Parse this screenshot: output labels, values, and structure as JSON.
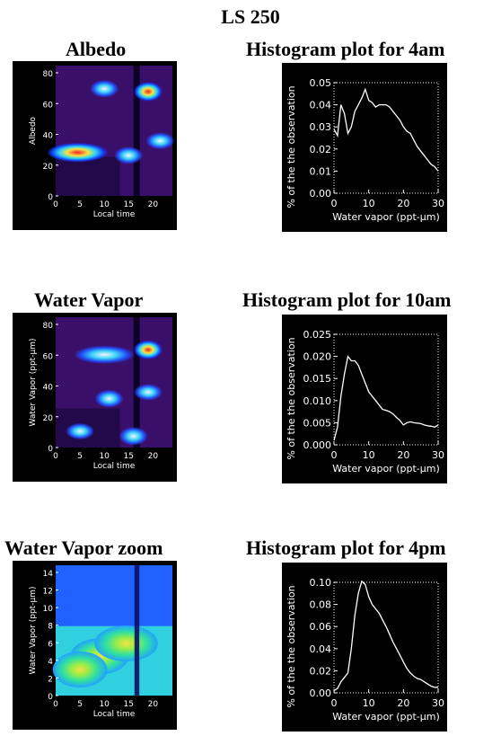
{
  "page": {
    "title": "LS 250"
  },
  "panels": [
    {
      "title": "Albedo",
      "chart_data": {
        "type": "heatmap",
        "xlabel": "Local time",
        "ylabel": "Albedo",
        "xlim": [
          0,
          24
        ],
        "ylim": [
          0,
          90
        ],
        "xticks": [
          "0",
          "5",
          "10",
          "15",
          "20"
        ],
        "yticks": [
          "0",
          "20",
          "40",
          "60",
          "80"
        ],
        "features": [
          {
            "x": 4.5,
            "y": 30,
            "intensity": 0.95
          },
          {
            "x": 10,
            "y": 74,
            "intensity": 0.7
          },
          {
            "x": 19,
            "y": 72,
            "intensity": 0.95
          },
          {
            "x": 15,
            "y": 28,
            "intensity": 0.7
          },
          {
            "x": 21.5,
            "y": 38,
            "intensity": 0.6
          }
        ]
      }
    },
    {
      "title": "Histogram plot for 4am",
      "chart_data": {
        "type": "line",
        "xlabel": "Water vapor (ppt-µm)",
        "ylabel": "% of the the observation",
        "xlim": [
          0,
          30
        ],
        "ylim": [
          0,
          0.05
        ],
        "xticks": [
          "0",
          "10",
          "20",
          "30"
        ],
        "yticks": [
          "0.00",
          "0.01",
          "0.02",
          "0.03",
          "0.04",
          "0.05"
        ],
        "x": [
          0,
          1,
          2,
          3,
          4,
          5,
          6,
          7,
          8,
          9,
          10,
          11,
          12,
          13,
          14,
          15,
          16,
          17,
          18,
          19,
          20,
          21,
          22,
          23,
          24,
          25,
          26,
          27,
          28,
          29,
          30
        ],
        "y": [
          0.029,
          0.026,
          0.04,
          0.036,
          0.027,
          0.03,
          0.037,
          0.04,
          0.043,
          0.047,
          0.042,
          0.041,
          0.039,
          0.04,
          0.04,
          0.04,
          0.039,
          0.037,
          0.035,
          0.033,
          0.03,
          0.028,
          0.027,
          0.024,
          0.021,
          0.019,
          0.017,
          0.015,
          0.013,
          0.012,
          0.01
        ]
      }
    },
    {
      "title": "Water Vapor",
      "chart_data": {
        "type": "heatmap",
        "xlabel": "Local time",
        "ylabel": "Water Vapor (ppt-µm)",
        "xlim": [
          0,
          24
        ],
        "ylim": [
          0,
          80
        ],
        "xticks": [
          "0",
          "5",
          "10",
          "15",
          "20"
        ],
        "yticks": [
          "0",
          "20",
          "40",
          "60",
          "80"
        ],
        "features": [
          {
            "x": 10,
            "y": 57,
            "intensity": 0.8
          },
          {
            "x": 19,
            "y": 60,
            "intensity": 0.9
          },
          {
            "x": 11,
            "y": 30,
            "intensity": 0.75
          },
          {
            "x": 16,
            "y": 7,
            "intensity": 0.85
          },
          {
            "x": 5,
            "y": 10,
            "intensity": 0.55
          },
          {
            "x": 19,
            "y": 34,
            "intensity": 0.55
          }
        ]
      }
    },
    {
      "title": "Histogram plot for 10am",
      "chart_data": {
        "type": "line",
        "xlabel": "Water vapor (ppt-µm)",
        "ylabel": "% of the the observation",
        "xlim": [
          0,
          30
        ],
        "ylim": [
          0,
          0.025
        ],
        "xticks": [
          "0",
          "10",
          "20",
          "30"
        ],
        "yticks": [
          "0.000",
          "0.005",
          "0.010",
          "0.015",
          "0.020",
          "0.025"
        ],
        "x": [
          0,
          1,
          2,
          3,
          4,
          5,
          6,
          7,
          8,
          9,
          10,
          11,
          12,
          13,
          14,
          15,
          16,
          17,
          18,
          19,
          20,
          21,
          22,
          23,
          24,
          25,
          26,
          27,
          28,
          29,
          30
        ],
        "y": [
          0.001,
          0.004,
          0.011,
          0.016,
          0.02,
          0.019,
          0.019,
          0.018,
          0.016,
          0.014,
          0.012,
          0.011,
          0.01,
          0.009,
          0.008,
          0.0078,
          0.0075,
          0.007,
          0.0062,
          0.0055,
          0.0045,
          0.005,
          0.0052,
          0.005,
          0.0049,
          0.0048,
          0.0045,
          0.0043,
          0.0042,
          0.004,
          0.0045
        ]
      }
    },
    {
      "title": "Water Vapor zoom",
      "chart_data": {
        "type": "heatmap",
        "xlabel": "Local time",
        "ylabel": "Water Vapor (ppt-µm)",
        "xlim": [
          0,
          24
        ],
        "ylim": [
          0,
          15
        ],
        "xticks": [
          "0",
          "5",
          "10",
          "15",
          "20"
        ],
        "yticks": [
          "0",
          "2",
          "4",
          "6",
          "8",
          "10",
          "12",
          "14"
        ],
        "features": [
          {
            "x": 9,
            "y": 4.5,
            "intensity": 0.6
          },
          {
            "x": 14.5,
            "y": 6,
            "intensity": 0.8
          },
          {
            "x": 5,
            "y": 3,
            "intensity": 0.45
          }
        ]
      }
    },
    {
      "title": "Histogram plot for 4pm",
      "chart_data": {
        "type": "line",
        "xlabel": "Water vapor (ppt-µm)",
        "ylabel": "% of the the observation",
        "xlim": [
          0,
          30
        ],
        "ylim": [
          0,
          0.1
        ],
        "xticks": [
          "0",
          "10",
          "20",
          "30"
        ],
        "yticks": [
          "0.00",
          "0.02",
          "0.04",
          "0.06",
          "0.08",
          "0.10"
        ],
        "x": [
          0,
          1,
          2,
          3,
          4,
          5,
          6,
          7,
          8,
          9,
          10,
          11,
          12,
          13,
          14,
          15,
          16,
          17,
          18,
          19,
          20,
          21,
          22,
          23,
          24,
          25,
          26,
          27,
          28,
          29,
          30
        ],
        "y": [
          0.002,
          0.004,
          0.01,
          0.014,
          0.018,
          0.04,
          0.07,
          0.09,
          0.101,
          0.098,
          0.087,
          0.08,
          0.076,
          0.072,
          0.066,
          0.06,
          0.053,
          0.046,
          0.04,
          0.034,
          0.028,
          0.022,
          0.018,
          0.015,
          0.013,
          0.012,
          0.01,
          0.008,
          0.006,
          0.005,
          0.005
        ]
      }
    }
  ]
}
